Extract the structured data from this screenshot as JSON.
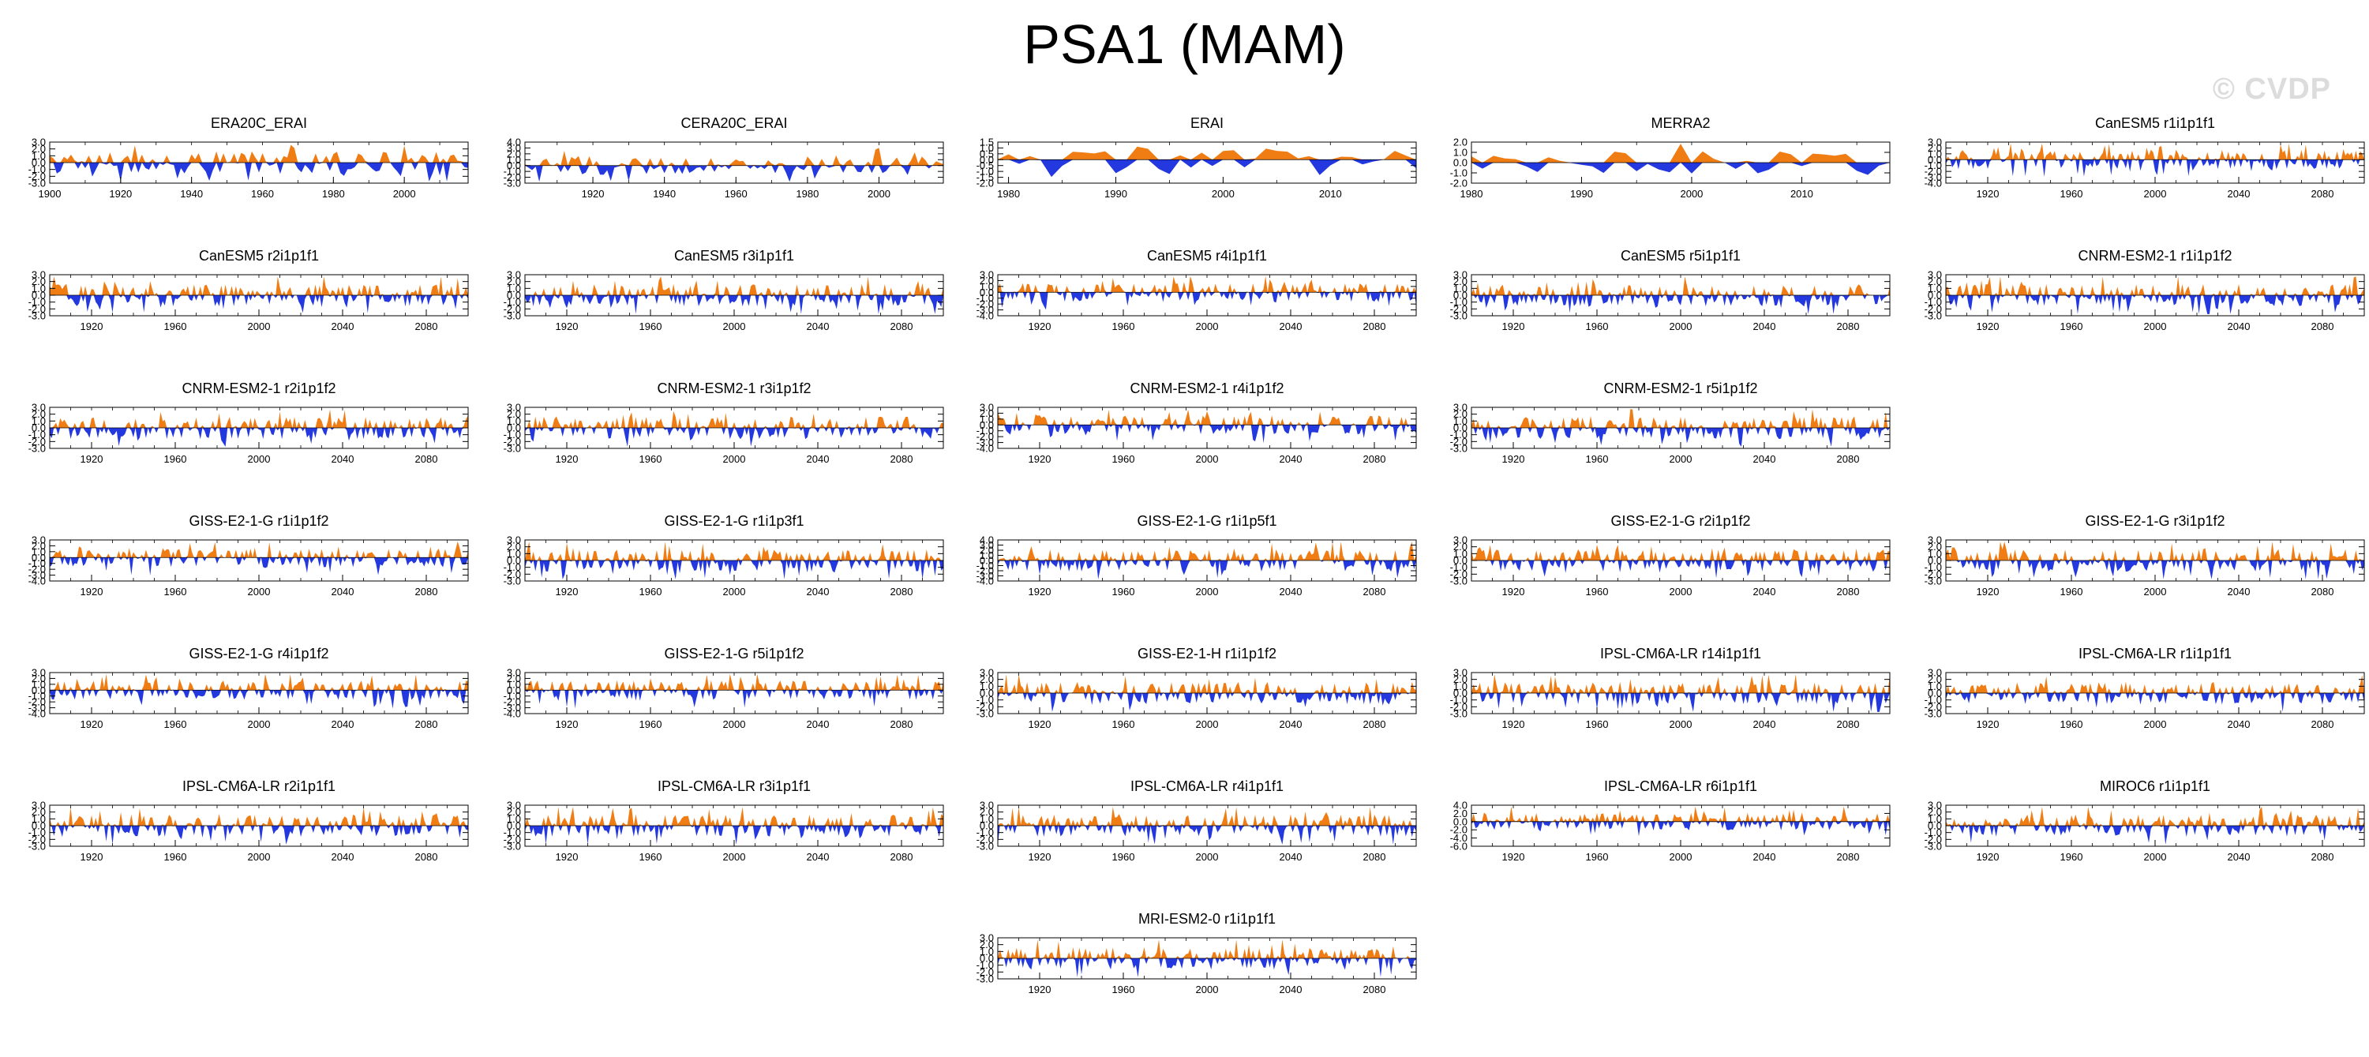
{
  "title": "PSA1 (MAM)",
  "watermark": "© CVDP",
  "colors": {
    "positive": "#f07d14",
    "negative": "#2438e0",
    "axis": "#000000"
  },
  "chart_data": [
    {
      "type": "area",
      "title": "ERA20C_ERAI",
      "xlim": [
        1900,
        2018
      ],
      "ylim": [
        -3,
        3
      ],
      "xticks": [
        1900,
        1920,
        1940,
        1960,
        1980,
        2000
      ],
      "yticks": [
        "3.0",
        "2.0",
        "1.0",
        "0.0",
        "-1.0",
        "-2.0",
        "-3.0"
      ]
    },
    {
      "type": "area",
      "title": "CERA20C_ERAI",
      "xlim": [
        1901,
        2018
      ],
      "ylim": [
        -3,
        4
      ],
      "xticks": [
        1920,
        1940,
        1960,
        1980,
        2000
      ],
      "yticks": [
        "4.0",
        "3.0",
        "2.0",
        "1.0",
        "0.0",
        "-1.0",
        "-2.0",
        "-3.0"
      ]
    },
    {
      "type": "area",
      "title": "ERAI",
      "xlim": [
        1979,
        2018
      ],
      "ylim": [
        -2,
        1.5
      ],
      "xticks": [
        1980,
        1990,
        2000,
        2010
      ],
      "yticks": [
        "1.5",
        "1.0",
        "0.5",
        "0.0",
        "-0.5",
        "-1.0",
        "-1.5",
        "-2.0"
      ]
    },
    {
      "type": "area",
      "title": "MERRA2",
      "xlim": [
        1980,
        2018
      ],
      "ylim": [
        -2,
        2
      ],
      "xticks": [
        1980,
        1990,
        2000,
        2010
      ],
      "yticks": [
        "2.0",
        "1.0",
        "0.0",
        "-1.0",
        "-2.0"
      ]
    },
    {
      "type": "area",
      "title": "CanESM5 r1i1p1f1",
      "xlim": [
        1900,
        2100
      ],
      "ylim": [
        -4,
        3
      ],
      "xticks": [
        1920,
        1960,
        2000,
        2040,
        2080
      ],
      "yticks": [
        "3.0",
        "2.0",
        "1.0",
        "0.0",
        "-1.0",
        "-2.0",
        "-3.0",
        "-4.0"
      ]
    },
    {
      "type": "area",
      "title": "CanESM5 r2i1p1f1",
      "xlim": [
        1900,
        2100
      ],
      "ylim": [
        -3,
        3
      ],
      "xticks": [
        1920,
        1960,
        2000,
        2040,
        2080
      ],
      "yticks": [
        "3.0",
        "2.0",
        "1.0",
        "0.0",
        "-1.0",
        "-2.0",
        "-3.0"
      ]
    },
    {
      "type": "area",
      "title": "CanESM5 r3i1p1f1",
      "xlim": [
        1900,
        2100
      ],
      "ylim": [
        -3,
        3
      ],
      "xticks": [
        1920,
        1960,
        2000,
        2040,
        2080
      ],
      "yticks": [
        "3.0",
        "2.0",
        "1.0",
        "0.0",
        "-1.0",
        "-2.0",
        "-3.0"
      ]
    },
    {
      "type": "area",
      "title": "CanESM5 r4i1p1f1",
      "xlim": [
        1900,
        2100
      ],
      "ylim": [
        -4,
        3
      ],
      "xticks": [
        1920,
        1960,
        2000,
        2040,
        2080
      ],
      "yticks": [
        "3.0",
        "2.0",
        "1.0",
        "0.0",
        "-1.0",
        "-2.0",
        "-3.0",
        "-4.0"
      ]
    },
    {
      "type": "area",
      "title": "CanESM5 r5i1p1f1",
      "xlim": [
        1900,
        2100
      ],
      "ylim": [
        -3,
        3
      ],
      "xticks": [
        1920,
        1960,
        2000,
        2040,
        2080
      ],
      "yticks": [
        "3.0",
        "2.0",
        "1.0",
        "0.0",
        "-1.0",
        "-2.0",
        "-3.0"
      ]
    },
    {
      "type": "area",
      "title": "CNRM-ESM2-1 r1i1p1f2",
      "xlim": [
        1900,
        2100
      ],
      "ylim": [
        -3,
        3
      ],
      "xticks": [
        1920,
        1960,
        2000,
        2040,
        2080
      ],
      "yticks": [
        "3.0",
        "2.0",
        "1.0",
        "0.0",
        "-1.0",
        "-2.0",
        "-3.0"
      ]
    },
    {
      "type": "area",
      "title": "CNRM-ESM2-1 r2i1p1f2",
      "xlim": [
        1900,
        2100
      ],
      "ylim": [
        -3,
        3
      ],
      "xticks": [
        1920,
        1960,
        2000,
        2040,
        2080
      ],
      "yticks": [
        "3.0",
        "2.0",
        "1.0",
        "0.0",
        "-1.0",
        "-2.0",
        "-3.0"
      ]
    },
    {
      "type": "area",
      "title": "CNRM-ESM2-1 r3i1p1f2",
      "xlim": [
        1900,
        2100
      ],
      "ylim": [
        -3,
        3
      ],
      "xticks": [
        1920,
        1960,
        2000,
        2040,
        2080
      ],
      "yticks": [
        "3.0",
        "2.0",
        "1.0",
        "0.0",
        "-1.0",
        "-2.0",
        "-3.0"
      ]
    },
    {
      "type": "area",
      "title": "CNRM-ESM2-1 r4i1p1f2",
      "xlim": [
        1900,
        2100
      ],
      "ylim": [
        -4,
        3
      ],
      "xticks": [
        1920,
        1960,
        2000,
        2040,
        2080
      ],
      "yticks": [
        "3.0",
        "2.0",
        "1.0",
        "0.0",
        "-1.0",
        "-2.0",
        "-3.0",
        "-4.0"
      ]
    },
    {
      "type": "area",
      "title": "CNRM-ESM2-1 r5i1p1f2",
      "xlim": [
        1900,
        2100
      ],
      "ylim": [
        -3,
        3
      ],
      "xticks": [
        1920,
        1960,
        2000,
        2040,
        2080
      ],
      "yticks": [
        "3.0",
        "2.0",
        "1.0",
        "0.0",
        "-1.0",
        "-2.0",
        "-3.0"
      ]
    },
    {
      "type": "area",
      "title": "GISS-E2-1-G r1i1p1f2",
      "xlim": [
        1900,
        2100
      ],
      "ylim": [
        -4,
        3
      ],
      "xticks": [
        1920,
        1960,
        2000,
        2040,
        2080
      ],
      "yticks": [
        "3.0",
        "2.0",
        "1.0",
        "0.0",
        "-1.0",
        "-2.0",
        "-3.0",
        "-4.0"
      ]
    },
    {
      "type": "area",
      "title": "GISS-E2-1-G r1i1p3f1",
      "xlim": [
        1900,
        2100
      ],
      "ylim": [
        -3,
        3
      ],
      "xticks": [
        1920,
        1960,
        2000,
        2040,
        2080
      ],
      "yticks": [
        "3.0",
        "2.0",
        "1.0",
        "0.0",
        "-1.0",
        "-2.0",
        "-3.0"
      ]
    },
    {
      "type": "area",
      "title": "GISS-E2-1-G r1i1p5f1",
      "xlim": [
        1900,
        2100
      ],
      "ylim": [
        -4,
        4
      ],
      "xticks": [
        1920,
        1960,
        2000,
        2040,
        2080
      ],
      "yticks": [
        "4.0",
        "3.0",
        "2.0",
        "1.0",
        "0.0",
        "-1.0",
        "-2.0",
        "-3.0",
        "-4.0"
      ]
    },
    {
      "type": "area",
      "title": "GISS-E2-1-G r2i1p1f2",
      "xlim": [
        1900,
        2100
      ],
      "ylim": [
        -3,
        3
      ],
      "xticks": [
        1920,
        1960,
        2000,
        2040,
        2080
      ],
      "yticks": [
        "3.0",
        "2.0",
        "1.0",
        "0.0",
        "-1.0",
        "-2.0",
        "-3.0"
      ]
    },
    {
      "type": "area",
      "title": "GISS-E2-1-G r3i1p1f2",
      "xlim": [
        1900,
        2100
      ],
      "ylim": [
        -3,
        3
      ],
      "xticks": [
        1920,
        1960,
        2000,
        2040,
        2080
      ],
      "yticks": [
        "3.0",
        "2.0",
        "1.0",
        "0.0",
        "-1.0",
        "-2.0",
        "-3.0"
      ]
    },
    {
      "type": "area",
      "title": "GISS-E2-1-G r4i1p1f2",
      "xlim": [
        1900,
        2100
      ],
      "ylim": [
        -4,
        3
      ],
      "xticks": [
        1920,
        1960,
        2000,
        2040,
        2080
      ],
      "yticks": [
        "3.0",
        "2.0",
        "1.0",
        "0.0",
        "-1.0",
        "-2.0",
        "-3.0",
        "-4.0"
      ]
    },
    {
      "type": "area",
      "title": "GISS-E2-1-G r5i1p1f2",
      "xlim": [
        1900,
        2100
      ],
      "ylim": [
        -4,
        3
      ],
      "xticks": [
        1920,
        1960,
        2000,
        2040,
        2080
      ],
      "yticks": [
        "3.0",
        "2.0",
        "1.0",
        "0.0",
        "-1.0",
        "-2.0",
        "-3.0",
        "-4.0"
      ]
    },
    {
      "type": "area",
      "title": "GISS-E2-1-H r1i1p1f2",
      "xlim": [
        1900,
        2100
      ],
      "ylim": [
        -3,
        3
      ],
      "xticks": [
        1920,
        1960,
        2000,
        2040,
        2080
      ],
      "yticks": [
        "3.0",
        "2.0",
        "1.0",
        "0.0",
        "-1.0",
        "-2.0",
        "-3.0"
      ]
    },
    {
      "type": "area",
      "title": "IPSL-CM6A-LR r14i1p1f1",
      "xlim": [
        1900,
        2100
      ],
      "ylim": [
        -3,
        3
      ],
      "xticks": [
        1920,
        1960,
        2000,
        2040,
        2080
      ],
      "yticks": [
        "3.0",
        "2.0",
        "1.0",
        "0.0",
        "-1.0",
        "-2.0",
        "-3.0"
      ]
    },
    {
      "type": "area",
      "title": "IPSL-CM6A-LR r1i1p1f1",
      "xlim": [
        1900,
        2100
      ],
      "ylim": [
        -3,
        3
      ],
      "xticks": [
        1920,
        1960,
        2000,
        2040,
        2080
      ],
      "yticks": [
        "3.0",
        "2.0",
        "1.0",
        "0.0",
        "-1.0",
        "-2.0",
        "-3.0"
      ]
    },
    {
      "type": "area",
      "title": "IPSL-CM6A-LR r2i1p1f1",
      "xlim": [
        1900,
        2100
      ],
      "ylim": [
        -3,
        3
      ],
      "xticks": [
        1920,
        1960,
        2000,
        2040,
        2080
      ],
      "yticks": [
        "3.0",
        "2.0",
        "1.0",
        "0.0",
        "-1.0",
        "-2.0",
        "-3.0"
      ]
    },
    {
      "type": "area",
      "title": "IPSL-CM6A-LR r3i1p1f1",
      "xlim": [
        1900,
        2100
      ],
      "ylim": [
        -3,
        3
      ],
      "xticks": [
        1920,
        1960,
        2000,
        2040,
        2080
      ],
      "yticks": [
        "3.0",
        "2.0",
        "1.0",
        "0.0",
        "-1.0",
        "-2.0",
        "-3.0"
      ]
    },
    {
      "type": "area",
      "title": "IPSL-CM6A-LR r4i1p1f1",
      "xlim": [
        1900,
        2100
      ],
      "ylim": [
        -3,
        3
      ],
      "xticks": [
        1920,
        1960,
        2000,
        2040,
        2080
      ],
      "yticks": [
        "3.0",
        "2.0",
        "1.0",
        "0.0",
        "-1.0",
        "-2.0",
        "-3.0"
      ]
    },
    {
      "type": "area",
      "title": "IPSL-CM6A-LR r6i1p1f1",
      "xlim": [
        1900,
        2100
      ],
      "ylim": [
        -6,
        4
      ],
      "xticks": [
        1920,
        1960,
        2000,
        2040,
        2080
      ],
      "yticks": [
        "4.0",
        "2.0",
        "0.0",
        "-2.0",
        "-4.0",
        "-6.0"
      ]
    },
    {
      "type": "area",
      "title": "MIROC6 r1i1p1f1",
      "xlim": [
        1900,
        2100
      ],
      "ylim": [
        -3,
        3
      ],
      "xticks": [
        1920,
        1960,
        2000,
        2040,
        2080
      ],
      "yticks": [
        "3.0",
        "2.0",
        "1.0",
        "0.0",
        "-1.0",
        "-2.0",
        "-3.0"
      ]
    },
    {
      "type": "area",
      "title": "MRI-ESM2-0 r1i1p1f1",
      "xlim": [
        1900,
        2100
      ],
      "ylim": [
        -3,
        3
      ],
      "xticks": [
        1920,
        1960,
        2000,
        2040,
        2080
      ],
      "yticks": [
        "3.0",
        "2.0",
        "1.0",
        "0.0",
        "-1.0",
        "-2.0",
        "-3.0"
      ]
    }
  ]
}
